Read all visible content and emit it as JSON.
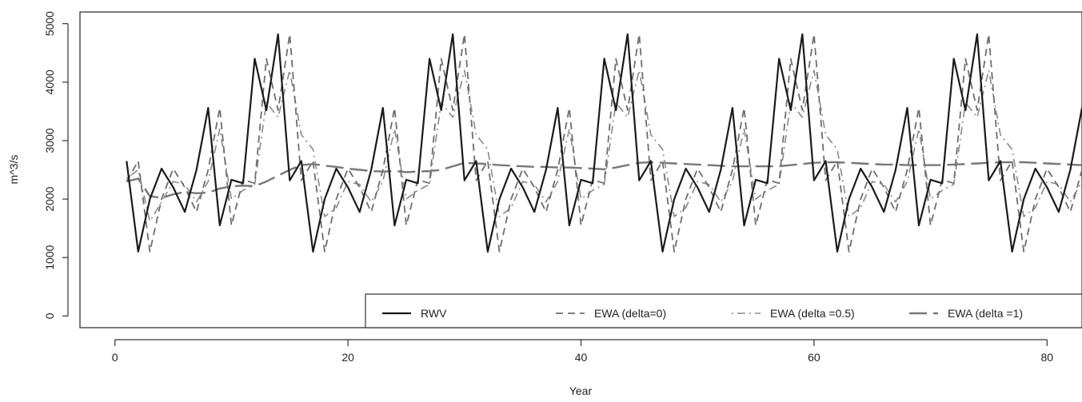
{
  "chart_data": {
    "type": "line",
    "title": "",
    "xlabel": "Year",
    "ylabel": "m^3/s",
    "xlim": [
      -3,
      83
    ],
    "ylim": [
      -200,
      5200
    ],
    "xticks": [
      0,
      20,
      40,
      60,
      80
    ],
    "yticks": [
      0,
      1000,
      2000,
      3000,
      4000,
      5000
    ],
    "grid": false,
    "legend_position": "bottom-right",
    "x": [
      1,
      2,
      3,
      4,
      5,
      6,
      7,
      8,
      9,
      10,
      11,
      12,
      13,
      14,
      15,
      16,
      17,
      18,
      19,
      20,
      21,
      22,
      23,
      24,
      25,
      26,
      27,
      28,
      29,
      30,
      31,
      32,
      33,
      34,
      35,
      36,
      37,
      38,
      39,
      40,
      41,
      42,
      43,
      44,
      45,
      46,
      47,
      48,
      49,
      50,
      51,
      52,
      53,
      54,
      55,
      56,
      57,
      58,
      59,
      60,
      61,
      62,
      63,
      64,
      65,
      66,
      67,
      68,
      69,
      70,
      71,
      72,
      73,
      74,
      75,
      76,
      77,
      78,
      79,
      80,
      81,
      82,
      83
    ],
    "series": [
      {
        "name": "RWV",
        "style": "solid",
        "values": [
          2650,
          1100,
          2000,
          2520,
          2200,
          1780,
          2500,
          3560,
          1550,
          2330,
          2270,
          4400,
          3520,
          4820,
          2320,
          2650,
          1100,
          2000,
          2520,
          2200,
          1780,
          2500,
          3560,
          1550,
          2330,
          2270,
          4400,
          3520,
          4820,
          2320,
          2650,
          1100,
          2000,
          2520,
          2200,
          1780,
          2500,
          3560,
          1550,
          2330,
          2270,
          4400,
          3520,
          4820,
          2320,
          2650,
          1100,
          2000,
          2520,
          2200,
          1780,
          2500,
          3560,
          1550,
          2330,
          2270,
          4400,
          3520,
          4820,
          2320,
          2650,
          1100,
          2000,
          2520,
          2200,
          1780,
          2500,
          3560,
          1550,
          2330,
          2270,
          4400,
          3520,
          4820,
          2320,
          2650,
          1100,
          2000,
          2520,
          2200,
          1780,
          2500,
          3560
        ]
      },
      {
        "name": "EWA (delta=0)",
        "style": "dashed",
        "values": [
          2300,
          2650,
          1100,
          2000,
          2520,
          2200,
          1780,
          2500,
          3560,
          1550,
          2330,
          2270,
          4400,
          3520,
          4820,
          2320,
          2650,
          1100,
          2000,
          2520,
          2200,
          1780,
          2500,
          3560,
          1550,
          2330,
          2270,
          4400,
          3520,
          4820,
          2320,
          2650,
          1100,
          2000,
          2520,
          2200,
          1780,
          2500,
          3560,
          1550,
          2330,
          2270,
          4400,
          3520,
          4820,
          2320,
          2650,
          1100,
          2000,
          2520,
          2200,
          1780,
          2500,
          3560,
          1550,
          2330,
          2270,
          4400,
          3520,
          4820,
          2320,
          2650,
          1100,
          2000,
          2520,
          2200,
          1780,
          2500,
          3560,
          1550,
          2330,
          2270,
          4400,
          3520,
          4820,
          2320,
          2650,
          1100,
          2000,
          2520,
          2200,
          1780,
          2500
        ]
      },
      {
        "name": "EWA (delta =0.5)",
        "style": "dotdash",
        "values": [
          2350,
          2500,
          1620,
          1950,
          2300,
          2250,
          1950,
          2300,
          3200,
          2000,
          2150,
          2250,
          3650,
          3400,
          4200,
          3100,
          2850,
          1700,
          1850,
          2300,
          2250,
          1950,
          2300,
          3200,
          2000,
          2150,
          2250,
          3650,
          3400,
          4200,
          3100,
          2850,
          1700,
          1850,
          2300,
          2250,
          1950,
          2300,
          3200,
          2000,
          2150,
          2250,
          3650,
          3400,
          4200,
          3100,
          2850,
          1700,
          1850,
          2300,
          2250,
          1950,
          2300,
          3200,
          2000,
          2150,
          2250,
          3650,
          3400,
          4200,
          3100,
          2850,
          1700,
          1850,
          2300,
          2250,
          1950,
          2300,
          3200,
          2000,
          2150,
          2250,
          3650,
          3400,
          4200,
          3100,
          2850,
          1700,
          1850,
          2300,
          2250,
          1950,
          2300
        ]
      },
      {
        "name": "EWA (delta =1)",
        "style": "longdash",
        "values": [
          2300,
          2350,
          2050,
          2020,
          2080,
          2120,
          2100,
          2110,
          2180,
          2220,
          2230,
          2220,
          2300,
          2400,
          2500,
          2580,
          2600,
          2570,
          2550,
          2520,
          2500,
          2480,
          2470,
          2480,
          2460,
          2470,
          2480,
          2500,
          2560,
          2620,
          2610,
          2600,
          2580,
          2570,
          2560,
          2550,
          2550,
          2540,
          2540,
          2530,
          2520,
          2510,
          2540,
          2580,
          2620,
          2630,
          2620,
          2610,
          2600,
          2590,
          2580,
          2570,
          2560,
          2560,
          2560,
          2560,
          2560,
          2580,
          2600,
          2620,
          2630,
          2630,
          2620,
          2610,
          2600,
          2590,
          2590,
          2580,
          2580,
          2580,
          2580,
          2590,
          2600,
          2610,
          2620,
          2630,
          2630,
          2630,
          2620,
          2610,
          2600,
          2590,
          2580
        ]
      }
    ]
  }
}
